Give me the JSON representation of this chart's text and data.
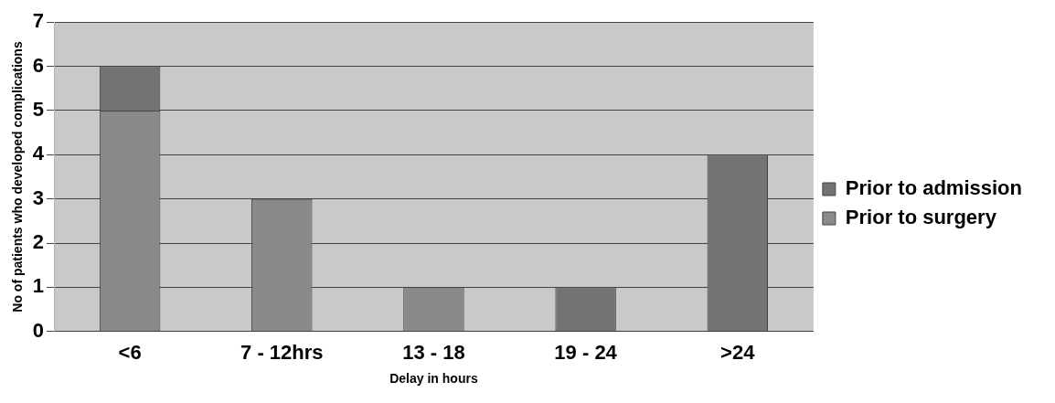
{
  "chart_data": {
    "type": "bar",
    "stacked": true,
    "xlabel": "Delay in hours",
    "ylabel": "No of patients who developed complications",
    "categories": [
      "<6",
      "7 - 12hrs",
      "13 - 18",
      "19 - 24",
      ">24"
    ],
    "series": [
      {
        "name": "Prior to surgery",
        "color": "#8a8a8a",
        "values": [
          5,
          3,
          1,
          0,
          0
        ]
      },
      {
        "name": "Prior to admission",
        "color": "#737373",
        "values": [
          1,
          0,
          0,
          1,
          4
        ]
      }
    ],
    "ylim": [
      0,
      7
    ],
    "yticks": [
      0,
      1,
      2,
      3,
      4,
      5,
      6,
      7
    ],
    "grid": "y",
    "legend": "right"
  }
}
